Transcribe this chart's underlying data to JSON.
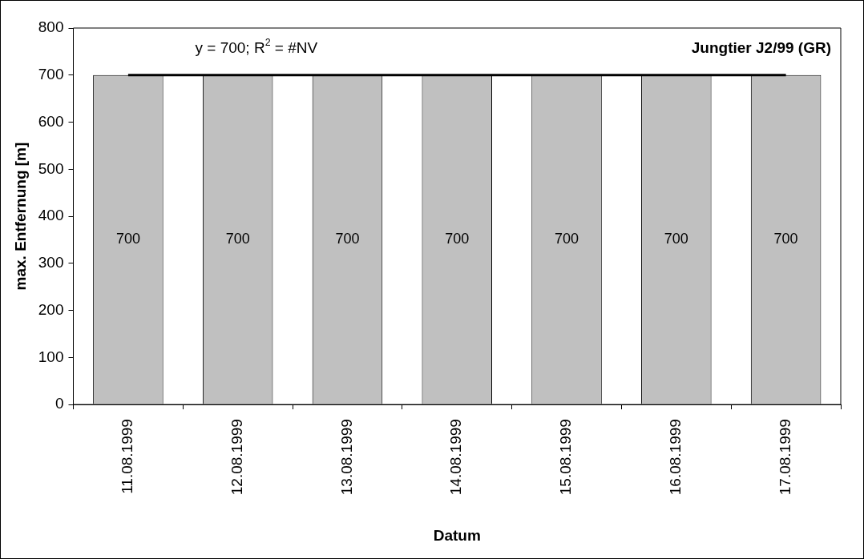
{
  "chart_data": {
    "type": "bar",
    "title": "Jungtier J2/99 (GR)",
    "xlabel": "Datum",
    "ylabel": "max. Entfernung [m]",
    "categories": [
      "11.08.1999",
      "12.08.1999",
      "13.08.1999",
      "14.08.1999",
      "15.08.1999",
      "16.08.1999",
      "17.08.1999"
    ],
    "series": [
      {
        "color": "#c0c0c0",
        "values": [
          700,
          700,
          700,
          700,
          700,
          700,
          700
        ],
        "value_labels": [
          "700",
          "700",
          "700",
          "700",
          "700",
          "700",
          "700"
        ]
      },
      {
        "type": "line",
        "color": "#000000",
        "values": [
          700,
          700,
          700,
          700,
          700,
          700,
          700
        ]
      }
    ],
    "ylim": [
      0,
      800
    ],
    "yticks": [
      0,
      100,
      200,
      300,
      400,
      500,
      600,
      700,
      800
    ],
    "annotations": [
      "y = 700; R$^{2}$ = #NV"
    ]
  }
}
